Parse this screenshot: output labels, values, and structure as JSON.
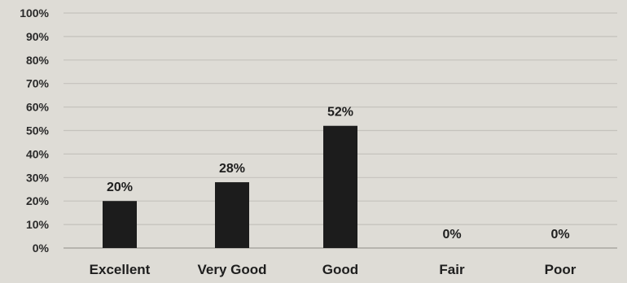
{
  "chart_data": {
    "type": "bar",
    "categories": [
      "Excellent",
      "Very Good",
      "Good",
      "Fair",
      "Poor"
    ],
    "values": [
      20,
      28,
      52,
      0,
      0
    ],
    "data_labels": [
      "20%",
      "28%",
      "52%",
      "0%",
      "0%"
    ],
    "y_ticks": [
      "0%",
      "10%",
      "20%",
      "30%",
      "40%",
      "50%",
      "60%",
      "70%",
      "80%",
      "90%",
      "100%"
    ],
    "ylim": [
      0,
      100
    ],
    "grid": true,
    "legend": "none",
    "colors": {
      "bar": "#1c1c1c",
      "grid": "#c4c2bc",
      "background": "#dedcd6"
    }
  }
}
